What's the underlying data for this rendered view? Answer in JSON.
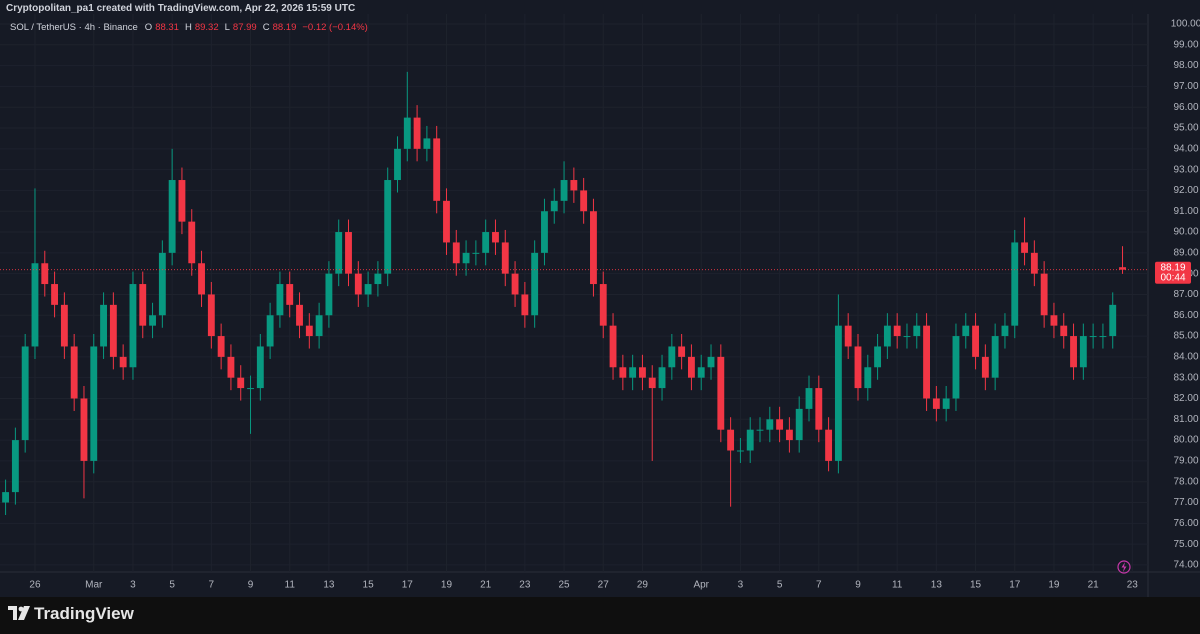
{
  "header": "Cryptopolitan_pa1 created with TradingView.com, Apr 22, 2026 15:59 UTC",
  "brand": "TradingView",
  "chart_data": {
    "type": "candlestick",
    "symbol": "SOL / TetherUS · 4h · Binance",
    "legend_labels": [
      "O",
      "H",
      "L",
      "C"
    ],
    "change": "−0.12 (−0.14%)",
    "countdown": "00:44",
    "up_color": "#089981",
    "down_color": "#f23645",
    "grid": true,
    "xlim": [
      -0.57,
      116.6
    ],
    "xticks": [
      {
        "value": 3,
        "label": "26"
      },
      {
        "value": 9,
        "label": "Mar"
      },
      {
        "value": 13,
        "label": "3"
      },
      {
        "value": 17,
        "label": "5"
      },
      {
        "value": 21,
        "label": "7"
      },
      {
        "value": 25,
        "label": "9"
      },
      {
        "value": 29,
        "label": "11"
      },
      {
        "value": 33,
        "label": "13"
      },
      {
        "value": 37,
        "label": "15"
      },
      {
        "value": 41,
        "label": "17"
      },
      {
        "value": 45,
        "label": "19"
      },
      {
        "value": 49,
        "label": "21"
      },
      {
        "value": 53,
        "label": "23"
      },
      {
        "value": 57,
        "label": "25"
      },
      {
        "value": 61,
        "label": "27"
      },
      {
        "value": 65,
        "label": "29"
      },
      {
        "value": 71,
        "label": "Apr"
      },
      {
        "value": 75,
        "label": "3"
      },
      {
        "value": 79,
        "label": "5"
      },
      {
        "value": 83,
        "label": "7"
      },
      {
        "value": 87,
        "label": "9"
      },
      {
        "value": 91,
        "label": "11"
      },
      {
        "value": 95,
        "label": "13"
      },
      {
        "value": 99,
        "label": "15"
      },
      {
        "value": 103,
        "label": "17"
      },
      {
        "value": 107,
        "label": "19"
      },
      {
        "value": 111,
        "label": "21"
      },
      {
        "value": 115,
        "label": "23"
      }
    ],
    "ylim": [
      73.66,
      100.48
    ],
    "yticks": [
      {
        "value": 74,
        "label": "74.00"
      },
      {
        "value": 75,
        "label": "75.00"
      },
      {
        "value": 76,
        "label": "76.00"
      },
      {
        "value": 77,
        "label": "77.00"
      },
      {
        "value": 78,
        "label": "78.00"
      },
      {
        "value": 79,
        "label": "79.00"
      },
      {
        "value": 80,
        "label": "80.00"
      },
      {
        "value": 81,
        "label": "81.00"
      },
      {
        "value": 82,
        "label": "82.00"
      },
      {
        "value": 83,
        "label": "83.00"
      },
      {
        "value": 84,
        "label": "84.00"
      },
      {
        "value": 85,
        "label": "85.00"
      },
      {
        "value": 86,
        "label": "86.00"
      },
      {
        "value": 87,
        "label": "87.00"
      },
      {
        "value": 88,
        "label": "88.00"
      },
      {
        "value": 89,
        "label": "89.00"
      },
      {
        "value": 90,
        "label": "90.00"
      },
      {
        "value": 91,
        "label": "91.00"
      },
      {
        "value": 92,
        "label": "92.00"
      },
      {
        "value": 93,
        "label": "93.00"
      },
      {
        "value": 94,
        "label": "94.00"
      },
      {
        "value": 95,
        "label": "95.00"
      },
      {
        "value": 96,
        "label": "96.00"
      },
      {
        "value": 97,
        "label": "97.00"
      },
      {
        "value": 98,
        "label": "98.00"
      },
      {
        "value": 99,
        "label": "99.00"
      },
      {
        "value": 100,
        "label": "100.00"
      }
    ],
    "open": [
      77,
      77.5,
      80,
      84.5,
      88.5,
      87.5,
      86.5,
      84.5,
      82,
      79,
      84.5,
      86.5,
      84,
      83.5,
      87.5,
      85.5,
      86,
      89,
      92.5,
      90.5,
      88.5,
      87,
      85,
      84,
      83,
      82.5,
      82.5,
      84.5,
      86,
      87.5,
      86.5,
      85.5,
      85,
      86,
      88,
      90,
      88,
      87,
      87.5,
      88,
      92.5,
      94,
      95.5,
      94,
      94.5,
      91.5,
      89.5,
      88.5,
      89,
      89,
      90,
      89.5,
      88,
      87,
      86,
      89,
      91,
      91.5,
      92.5,
      92,
      91,
      87.5,
      85.5,
      83.5,
      83,
      83.5,
      83,
      82.5,
      83.5,
      84.5,
      84,
      83,
      83.5,
      84,
      80.5,
      79.5,
      79.5,
      80.5,
      80.5,
      81,
      80.5,
      80,
      81.5,
      82.5,
      80.5,
      79,
      85.5,
      84.5,
      82.5,
      83.5,
      84.5,
      85.5,
      85,
      85,
      85.5,
      82,
      81.5,
      82,
      85,
      85.5,
      84,
      83,
      85,
      85.5,
      89.5,
      89,
      88,
      86,
      85.5,
      85,
      83.5,
      85,
      85,
      85,
      88.31
    ],
    "high": [
      78.1,
      80.6,
      85.1,
      92.1,
      89.1,
      88.1,
      87.1,
      85.1,
      82.6,
      85.1,
      87.1,
      87.1,
      84.6,
      88.1,
      88.1,
      86.6,
      89.6,
      94,
      93.1,
      91.1,
      89.1,
      87.6,
      85.6,
      84.6,
      83.6,
      83.1,
      85.1,
      86.6,
      88.1,
      88.1,
      87.1,
      86.1,
      86.6,
      88.6,
      90.6,
      90.6,
      88.6,
      88.1,
      88.6,
      93.1,
      94.6,
      97.7,
      96.1,
      95.1,
      95.1,
      92.1,
      90.1,
      89.6,
      89.6,
      90.6,
      90.6,
      90.1,
      88.6,
      87.6,
      89.6,
      91.6,
      92.1,
      93.4,
      93.1,
      92.6,
      91.6,
      88.1,
      86.1,
      84.1,
      84.1,
      84.1,
      83.6,
      84.1,
      85.1,
      85.1,
      84.6,
      84.1,
      84.6,
      84.6,
      81.1,
      80.1,
      81.1,
      81.1,
      81.6,
      81.6,
      81.1,
      82.1,
      83.1,
      83.1,
      81.1,
      87,
      86.1,
      85.1,
      84.1,
      85.1,
      86.1,
      86.1,
      85.6,
      86.1,
      86.1,
      82.6,
      82.6,
      85.6,
      86.1,
      86.1,
      84.6,
      85.6,
      86.1,
      90.1,
      90.7,
      89.6,
      88.6,
      86.6,
      86.1,
      85.6,
      85.6,
      85.6,
      85.6,
      87.1,
      89.32
    ],
    "low": [
      76.4,
      76.9,
      79.4,
      83.9,
      86.9,
      85.9,
      83.9,
      81.4,
      77.2,
      78.4,
      83.9,
      83.4,
      82.9,
      82.9,
      84.9,
      84.9,
      85.4,
      88.4,
      89.9,
      87.9,
      86.4,
      84.4,
      83.4,
      82.4,
      81.9,
      80.3,
      81.9,
      83.9,
      85.4,
      85.9,
      84.9,
      84.4,
      84.4,
      85.4,
      87.4,
      87.4,
      86.4,
      86.4,
      86.9,
      87.4,
      91.9,
      93.4,
      93.4,
      93.4,
      90.9,
      88.9,
      87.9,
      87.9,
      88.4,
      88.4,
      88.9,
      87.4,
      86.4,
      85.4,
      85.4,
      88.4,
      90.4,
      90.9,
      91.4,
      90.4,
      86.9,
      84.9,
      82.9,
      82.4,
      82.4,
      82.4,
      79,
      81.9,
      82.9,
      83.4,
      82.4,
      82.4,
      82.9,
      79.9,
      76.8,
      78.9,
      78.9,
      79.9,
      79.9,
      79.9,
      79.4,
      79.4,
      80.9,
      79.9,
      78.5,
      78.4,
      83.9,
      81.9,
      81.9,
      82.9,
      83.9,
      84.4,
      84.4,
      84.4,
      81.4,
      80.9,
      80.9,
      81.4,
      84.4,
      83.4,
      82.4,
      82.4,
      84.4,
      84.9,
      88.4,
      87.4,
      85.4,
      84.9,
      84.4,
      82.9,
      82.9,
      84.4,
      84.4,
      84.4,
      87.99
    ],
    "close": [
      77.5,
      80,
      84.5,
      88.5,
      87.5,
      86.5,
      84.5,
      82,
      79,
      84.5,
      86.5,
      84,
      83.5,
      87.5,
      85.5,
      86,
      89,
      92.5,
      90.5,
      88.5,
      87,
      85,
      84,
      83,
      82.5,
      82.5,
      84.5,
      86,
      87.5,
      86.5,
      85.5,
      85,
      86,
      88,
      90,
      88,
      87,
      87.5,
      88,
      92.5,
      94,
      95.5,
      94,
      94.5,
      91.5,
      89.5,
      88.5,
      89,
      89,
      90,
      89.5,
      88,
      87,
      86,
      89,
      91,
      91.5,
      92.5,
      92,
      91,
      87.5,
      85.5,
      83.5,
      83,
      83.5,
      83,
      82.5,
      83.5,
      84.5,
      84,
      83,
      83.5,
      84,
      80.5,
      79.5,
      79.5,
      80.5,
      80.5,
      81,
      80.5,
      80,
      81.5,
      82.5,
      80.5,
      79,
      85.5,
      84.5,
      82.5,
      83.5,
      84.5,
      85.5,
      85,
      85,
      85.5,
      82,
      81.5,
      82,
      85,
      85.5,
      84,
      83,
      85,
      85.5,
      89.5,
      89,
      88,
      86,
      85.5,
      85,
      83.5,
      85,
      85,
      85,
      86.5,
      88.19
    ]
  }
}
